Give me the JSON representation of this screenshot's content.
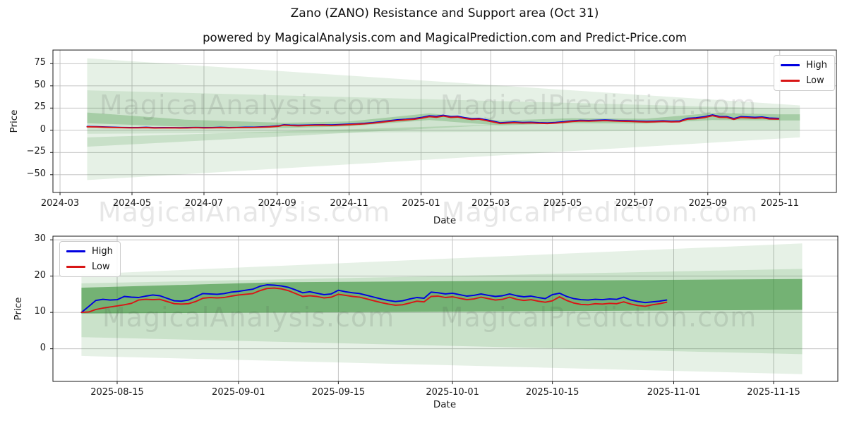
{
  "figure": {
    "title": "Zano (ZANO) Resistance and Support area (Oct 31)",
    "subtitle": "powered by MagicalAnalysis.com and MagicalPrediction.com and Predict-Price.com",
    "watermark": {
      "left_text": "MagicalAnalysis.com",
      "right_text": "MagicalPrediction.com"
    },
    "background_color": "#ffffff",
    "grid_color": "#bdbdbd",
    "spine_color": "#1a1a1a"
  },
  "chart_data": [
    {
      "type": "line",
      "title": "",
      "xlabel": "Date",
      "ylabel": "Price",
      "grid": true,
      "legend_position": "upper right",
      "x_range": [
        "2024-02-24",
        "2025-12-19"
      ],
      "y_range": [
        -70,
        90.3
      ],
      "x_ticks": [
        [
          "2024-03-01",
          "2024-03"
        ],
        [
          "2024-05-01",
          "2024-05"
        ],
        [
          "2024-07-01",
          "2024-07"
        ],
        [
          "2024-09-01",
          "2024-09"
        ],
        [
          "2024-11-01",
          "2024-11"
        ],
        [
          "2025-01-01",
          "2025-01"
        ],
        [
          "2025-03-01",
          "2025-03"
        ],
        [
          "2025-05-01",
          "2025-05"
        ],
        [
          "2025-07-01",
          "2025-07"
        ],
        [
          "2025-09-01",
          "2025-09"
        ],
        [
          "2025-11-01",
          "2025-11"
        ]
      ],
      "y_ticks": [
        [
          75,
          "75"
        ],
        [
          50,
          "50"
        ],
        [
          25,
          "25"
        ],
        [
          0,
          "0"
        ],
        [
          -25,
          "−25"
        ],
        [
          -50,
          "−50"
        ]
      ],
      "band_color": "#2e8b2e",
      "bands": [
        {
          "name": "outer-support-resistance-area",
          "alpha": 0.12,
          "points": [
            [
              "2024-03-24",
              81
            ],
            [
              "2025-11-18",
              28
            ],
            [
              "2025-11-18",
              -8
            ],
            [
              "2024-03-24",
              -56
            ]
          ]
        },
        {
          "name": "middle-support-resistance-area",
          "alpha": 0.12,
          "points": [
            [
              "2024-03-24",
              45
            ],
            [
              "2025-11-18",
              24
            ],
            [
              "2025-11-18",
              0
            ],
            [
              "2024-03-24",
              -4
            ]
          ]
        },
        {
          "name": "lower-support-wedge",
          "alpha": 0.16,
          "points": [
            [
              "2024-03-24",
              -8
            ],
            [
              "2025-03-20",
              7
            ],
            [
              "2024-03-24",
              -18.5
            ]
          ]
        },
        {
          "name": "core-band",
          "alpha": 0.26,
          "points": [
            [
              "2024-03-24",
              20
            ],
            [
              "2024-06-15",
              12
            ],
            [
              "2024-09-07",
              8.5
            ],
            [
              "2024-11-01",
              10
            ],
            [
              "2025-01-08",
              19
            ],
            [
              "2025-03-09",
              11
            ],
            [
              "2025-05-09",
              13.5
            ],
            [
              "2025-07-11",
              13
            ],
            [
              "2025-09-05",
              19.5
            ],
            [
              "2025-10-31",
              18
            ],
            [
              "2025-11-18",
              18
            ],
            [
              "2025-11-18",
              11
            ],
            [
              "2025-10-31",
              11
            ],
            [
              "2025-09-05",
              11.5
            ],
            [
              "2025-07-11",
              7.5
            ],
            [
              "2025-05-09",
              8
            ],
            [
              "2025-03-09",
              5.5
            ],
            [
              "2025-01-08",
              11.5
            ],
            [
              "2024-11-01",
              4.5
            ],
            [
              "2024-09-07",
              2.5
            ],
            [
              "2024-06-15",
              4
            ],
            [
              "2024-03-24",
              8
            ]
          ]
        }
      ],
      "x": [
        "2024-03-24",
        "2024-04-01",
        "2024-04-08",
        "2024-04-15",
        "2024-04-22",
        "2024-04-29",
        "2024-05-06",
        "2024-05-13",
        "2024-05-20",
        "2024-05-27",
        "2024-06-03",
        "2024-06-10",
        "2024-06-17",
        "2024-06-24",
        "2024-07-01",
        "2024-07-08",
        "2024-07-15",
        "2024-07-22",
        "2024-07-29",
        "2024-08-05",
        "2024-08-12",
        "2024-08-19",
        "2024-08-26",
        "2024-09-02",
        "2024-09-07",
        "2024-09-12",
        "2024-09-19",
        "2024-09-26",
        "2024-10-03",
        "2024-10-10",
        "2024-10-17",
        "2024-10-24",
        "2024-10-31",
        "2024-11-07",
        "2024-11-14",
        "2024-11-21",
        "2024-11-28",
        "2024-12-05",
        "2024-12-12",
        "2024-12-19",
        "2024-12-26",
        "2025-01-02",
        "2025-01-08",
        "2025-01-14",
        "2025-01-20",
        "2025-01-26",
        "2025-02-01",
        "2025-02-07",
        "2025-02-13",
        "2025-02-19",
        "2025-02-25",
        "2025-03-03",
        "2025-03-09",
        "2025-03-15",
        "2025-03-21",
        "2025-03-28",
        "2025-04-04",
        "2025-04-11",
        "2025-04-18",
        "2025-04-25",
        "2025-05-02",
        "2025-05-09",
        "2025-05-16",
        "2025-05-23",
        "2025-05-30",
        "2025-06-06",
        "2025-06-13",
        "2025-06-20",
        "2025-06-27",
        "2025-07-04",
        "2025-07-11",
        "2025-07-18",
        "2025-07-25",
        "2025-08-01",
        "2025-08-08",
        "2025-08-15",
        "2025-08-22",
        "2025-08-29",
        "2025-09-05",
        "2025-09-11",
        "2025-09-17",
        "2025-09-23",
        "2025-09-29",
        "2025-10-05",
        "2025-10-11",
        "2025-10-17",
        "2025-10-23",
        "2025-10-31"
      ],
      "series": [
        {
          "name": "High",
          "color": "#0000e0",
          "y": [
            4.2,
            4.0,
            3.7,
            3.5,
            3.2,
            3.0,
            3.1,
            3.3,
            2.9,
            3.0,
            3.1,
            2.9,
            3.0,
            3.2,
            3.0,
            3.1,
            3.3,
            3.1,
            3.2,
            3.4,
            3.5,
            3.8,
            4.2,
            5.0,
            6.3,
            5.8,
            5.6,
            5.9,
            6.1,
            6.3,
            6.0,
            6.4,
            6.8,
            7.2,
            7.8,
            8.6,
            9.6,
            10.8,
            11.8,
            12.4,
            13.2,
            14.6,
            16.3,
            15.6,
            16.9,
            15.4,
            15.8,
            14.2,
            13.0,
            13.4,
            11.8,
            10.2,
            8.4,
            8.9,
            9.3,
            8.8,
            9.0,
            8.6,
            8.3,
            8.8,
            9.6,
            10.6,
            11.2,
            11.0,
            11.3,
            11.6,
            11.2,
            10.9,
            10.7,
            10.3,
            10.0,
            10.2,
            10.6,
            10.1,
            10.4,
            13.5,
            14.0,
            15.2,
            17.3,
            15.5,
            15.4,
            13.2,
            15.3,
            14.9,
            14.5,
            15.0,
            13.7,
            13.4
          ]
        },
        {
          "name": "Low",
          "color": "#d81616",
          "y": [
            3.9,
            3.7,
            3.4,
            3.2,
            2.9,
            2.8,
            2.8,
            3.0,
            2.6,
            2.7,
            2.8,
            2.6,
            2.7,
            2.9,
            2.7,
            2.8,
            3.0,
            2.8,
            2.9,
            3.1,
            3.2,
            3.5,
            3.8,
            4.5,
            5.8,
            5.3,
            5.1,
            5.4,
            5.6,
            5.8,
            5.5,
            5.9,
            6.3,
            6.7,
            7.2,
            8.0,
            9.0,
            10.1,
            11.0,
            11.7,
            12.4,
            13.8,
            15.4,
            14.7,
            16.0,
            14.5,
            14.9,
            13.3,
            12.2,
            12.6,
            11.0,
            9.4,
            7.7,
            8.2,
            8.6,
            8.1,
            8.3,
            7.9,
            7.6,
            8.1,
            8.9,
            9.9,
            10.5,
            10.3,
            10.6,
            10.9,
            10.5,
            10.2,
            10.0,
            9.6,
            9.3,
            9.5,
            9.9,
            9.4,
            9.6,
            12.6,
            13.1,
            14.3,
            16.4,
            14.6,
            14.5,
            12.3,
            14.4,
            14.0,
            13.6,
            14.1,
            12.8,
            12.6
          ]
        }
      ]
    },
    {
      "type": "line",
      "title": "",
      "xlabel": "Date",
      "ylabel": "Price",
      "grid": true,
      "legend_position": "upper left",
      "x_range": [
        "2025-08-06",
        "2025-11-24"
      ],
      "y_range": [
        -9,
        31
      ],
      "x_ticks": [
        [
          "2025-08-15",
          "2025-08-15"
        ],
        [
          "2025-09-01",
          "2025-09-01"
        ],
        [
          "2025-09-15",
          "2025-09-15"
        ],
        [
          "2025-10-01",
          "2025-10-01"
        ],
        [
          "2025-10-15",
          "2025-10-15"
        ],
        [
          "2025-11-01",
          "2025-11-01"
        ],
        [
          "2025-11-15",
          "2025-11-15"
        ]
      ],
      "y_ticks": [
        [
          30,
          "30"
        ],
        [
          20,
          "20"
        ],
        [
          10,
          "10"
        ],
        [
          0,
          "0"
        ]
      ],
      "band_color": "#2e8b2e",
      "bands": [
        {
          "name": "outer-support-resistance-area",
          "alpha": 0.12,
          "points": [
            [
              "2025-08-10",
              20.5
            ],
            [
              "2025-11-19",
              29
            ],
            [
              "2025-11-19",
              -7
            ],
            [
              "2025-08-10",
              -2
            ]
          ]
        },
        {
          "name": "middle-support-resistance-area",
          "alpha": 0.15,
          "points": [
            [
              "2025-08-10",
              18
            ],
            [
              "2025-11-19",
              22
            ],
            [
              "2025-11-19",
              -1.5
            ],
            [
              "2025-08-10",
              3.2
            ]
          ]
        },
        {
          "name": "core-band",
          "alpha": 0.55,
          "points": [
            [
              "2025-08-10",
              16.8
            ],
            [
              "2025-09-06",
              18.3
            ],
            [
              "2025-11-19",
              19.2
            ],
            [
              "2025-11-19",
              10.7
            ],
            [
              "2025-08-10",
              9.7
            ]
          ]
        }
      ],
      "x": [
        "2025-08-10",
        "2025-08-11",
        "2025-08-12",
        "2025-08-13",
        "2025-08-14",
        "2025-08-15",
        "2025-08-16",
        "2025-08-17",
        "2025-08-18",
        "2025-08-19",
        "2025-08-20",
        "2025-08-21",
        "2025-08-22",
        "2025-08-23",
        "2025-08-24",
        "2025-08-25",
        "2025-08-26",
        "2025-08-27",
        "2025-08-28",
        "2025-08-29",
        "2025-08-30",
        "2025-08-31",
        "2025-09-01",
        "2025-09-02",
        "2025-09-03",
        "2025-09-04",
        "2025-09-05",
        "2025-09-06",
        "2025-09-07",
        "2025-09-08",
        "2025-09-09",
        "2025-09-10",
        "2025-09-11",
        "2025-09-12",
        "2025-09-13",
        "2025-09-14",
        "2025-09-15",
        "2025-09-16",
        "2025-09-17",
        "2025-09-18",
        "2025-09-19",
        "2025-09-20",
        "2025-09-21",
        "2025-09-22",
        "2025-09-23",
        "2025-09-24",
        "2025-09-25",
        "2025-09-26",
        "2025-09-27",
        "2025-09-28",
        "2025-09-29",
        "2025-09-30",
        "2025-10-01",
        "2025-10-02",
        "2025-10-03",
        "2025-10-04",
        "2025-10-05",
        "2025-10-06",
        "2025-10-07",
        "2025-10-08",
        "2025-10-09",
        "2025-10-10",
        "2025-10-11",
        "2025-10-12",
        "2025-10-13",
        "2025-10-14",
        "2025-10-15",
        "2025-10-16",
        "2025-10-17",
        "2025-10-18",
        "2025-10-19",
        "2025-10-20",
        "2025-10-21",
        "2025-10-22",
        "2025-10-23",
        "2025-10-24",
        "2025-10-25",
        "2025-10-26",
        "2025-10-27",
        "2025-10-28",
        "2025-10-29",
        "2025-10-30",
        "2025-10-31"
      ],
      "series": [
        {
          "name": "High",
          "color": "#0000e0",
          "y": [
            10.0,
            11.6,
            13.3,
            13.6,
            13.4,
            13.5,
            14.4,
            14.2,
            14.1,
            14.5,
            14.8,
            14.6,
            13.9,
            13.2,
            13.1,
            13.4,
            14.3,
            15.2,
            15.1,
            15.0,
            15.2,
            15.6,
            15.8,
            16.1,
            16.4,
            17.2,
            17.6,
            17.5,
            17.3,
            16.9,
            16.2,
            15.4,
            15.7,
            15.3,
            14.9,
            15.1,
            16.1,
            15.7,
            15.4,
            15.2,
            14.7,
            14.2,
            13.7,
            13.3,
            13.0,
            13.2,
            13.7,
            14.1,
            13.9,
            15.6,
            15.4,
            15.1,
            15.3,
            14.9,
            14.5,
            14.7,
            15.1,
            14.7,
            14.4,
            14.6,
            15.1,
            14.6,
            14.3,
            14.5,
            14.1,
            13.8,
            14.9,
            15.3,
            14.4,
            13.8,
            13.5,
            13.4,
            13.6,
            13.5,
            13.7,
            13.6,
            14.2,
            13.4,
            13.0,
            12.7,
            12.9,
            13.1,
            13.4
          ]
        },
        {
          "name": "Low",
          "color": "#d81616",
          "y": [
            10.0,
            10.1,
            10.8,
            11.2,
            11.5,
            11.8,
            12.1,
            12.5,
            13.4,
            13.6,
            13.5,
            13.6,
            13.0,
            12.4,
            12.3,
            12.4,
            13.0,
            13.9,
            14.1,
            14.0,
            14.1,
            14.5,
            14.8,
            15.0,
            15.2,
            16.0,
            16.6,
            16.7,
            16.5,
            16.0,
            15.2,
            14.4,
            14.6,
            14.4,
            14.0,
            14.2,
            15.0,
            14.7,
            14.4,
            14.2,
            13.7,
            13.2,
            12.7,
            12.3,
            12.0,
            12.1,
            12.6,
            13.1,
            12.9,
            14.4,
            14.5,
            14.1,
            14.3,
            13.9,
            13.5,
            13.7,
            14.2,
            13.8,
            13.4,
            13.6,
            14.2,
            13.6,
            13.3,
            13.5,
            13.1,
            12.8,
            13.2,
            14.3,
            13.3,
            12.6,
            12.2,
            12.1,
            12.4,
            12.3,
            12.5,
            12.4,
            12.9,
            12.3,
            11.9,
            11.7,
            12.1,
            12.4,
            12.8
          ]
        }
      ]
    }
  ]
}
